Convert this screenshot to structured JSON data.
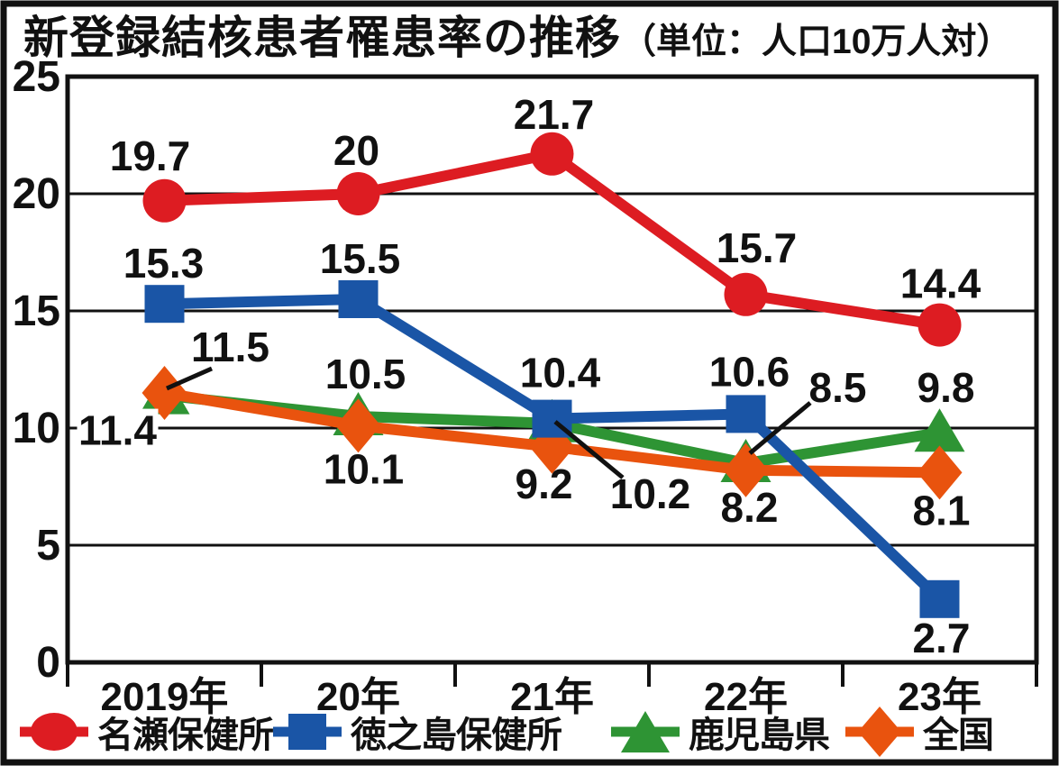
{
  "title": {
    "main": "新登録結核患者罹患率の推移",
    "unit": "（単位：人口10万人対）"
  },
  "chart_data": {
    "type": "line",
    "categories": [
      "2019年",
      "20年",
      "21年",
      "22年",
      "23年"
    ],
    "series": [
      {
        "name": "名瀬保健所",
        "marker": "circle",
        "color": "#dd1c22",
        "values": [
          19.7,
          20,
          21.7,
          15.7,
          14.4
        ],
        "value_labels": [
          "19.7",
          "20",
          "21.7",
          "15.7",
          "14.4"
        ]
      },
      {
        "name": "徳之島保健所",
        "marker": "square",
        "color": "#1a55a6",
        "values": [
          15.3,
          15.5,
          10.4,
          10.6,
          2.7
        ],
        "value_labels": [
          "15.3",
          "15.5",
          "10.4",
          "10.6",
          "2.7"
        ]
      },
      {
        "name": "鹿児島県",
        "marker": "triangle",
        "color": "#2e9434",
        "values": [
          11.4,
          10.5,
          10.2,
          8.5,
          9.8
        ],
        "value_labels": [
          "11.4",
          "10.5",
          "10.2",
          "8.5",
          "9.8"
        ]
      },
      {
        "name": "全国",
        "marker": "diamond",
        "color": "#e9530e",
        "values": [
          11.5,
          10.1,
          9.2,
          8.2,
          8.1
        ],
        "value_labels": [
          "11.5",
          "10.1",
          "9.2",
          "8.2",
          "8.1"
        ]
      }
    ],
    "ylim": [
      0,
      25
    ],
    "yticks": [
      "0",
      "5",
      "10",
      "15",
      "20",
      "25"
    ],
    "grid": true,
    "legend_position": "bottom",
    "text_color": "#111111"
  }
}
